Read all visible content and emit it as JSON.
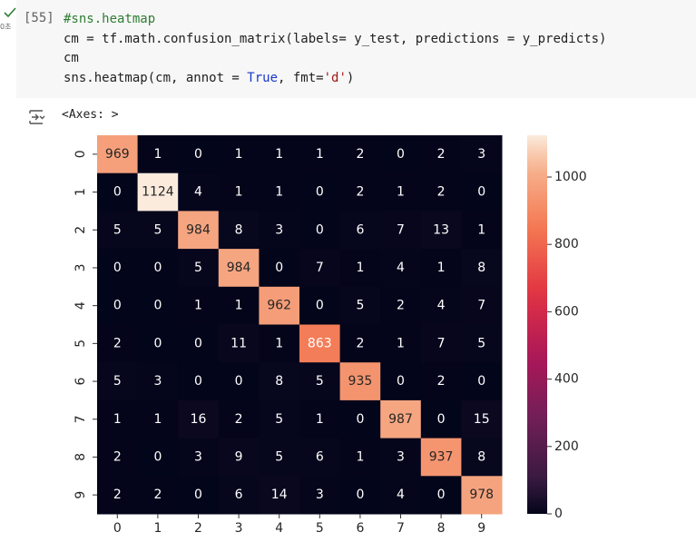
{
  "cell": {
    "execution_count": "[55]",
    "status": "0초",
    "code": [
      [
        "#sns.heatmap"
      ],
      [
        "cm = tf.math.confusion_matrix(labels= y_test, predictions = y_predicts)"
      ],
      [
        "cm"
      ],
      [
        "sns.heatmap(cm, annot = ",
        "True",
        ", fmt=",
        "'d'",
        ")"
      ]
    ]
  },
  "output": {
    "text": "<Axes: >"
  },
  "chart_data": {
    "type": "heatmap",
    "categories": [
      "0",
      "1",
      "2",
      "3",
      "4",
      "5",
      "6",
      "7",
      "8",
      "9"
    ],
    "rows": [
      "0",
      "1",
      "2",
      "3",
      "4",
      "5",
      "6",
      "7",
      "8",
      "9"
    ],
    "values": [
      [
        969,
        1,
        0,
        1,
        1,
        1,
        2,
        0,
        2,
        3
      ],
      [
        0,
        1124,
        4,
        1,
        1,
        0,
        2,
        1,
        2,
        0
      ],
      [
        5,
        5,
        984,
        8,
        3,
        0,
        6,
        7,
        13,
        1
      ],
      [
        0,
        0,
        5,
        984,
        0,
        7,
        1,
        4,
        1,
        8
      ],
      [
        0,
        0,
        1,
        1,
        962,
        0,
        5,
        2,
        4,
        7
      ],
      [
        2,
        0,
        0,
        11,
        1,
        863,
        2,
        1,
        7,
        5
      ],
      [
        5,
        3,
        0,
        0,
        8,
        5,
        935,
        0,
        2,
        0
      ],
      [
        1,
        1,
        16,
        2,
        5,
        1,
        0,
        987,
        0,
        15
      ],
      [
        2,
        0,
        3,
        9,
        5,
        6,
        1,
        3,
        937,
        8
      ],
      [
        2,
        2,
        0,
        6,
        14,
        3,
        0,
        4,
        0,
        978
      ]
    ],
    "zlim": [
      0,
      1124
    ],
    "zticks": [
      0,
      200,
      400,
      600,
      800,
      1000
    ],
    "colormap": "rocket",
    "annot": true
  }
}
